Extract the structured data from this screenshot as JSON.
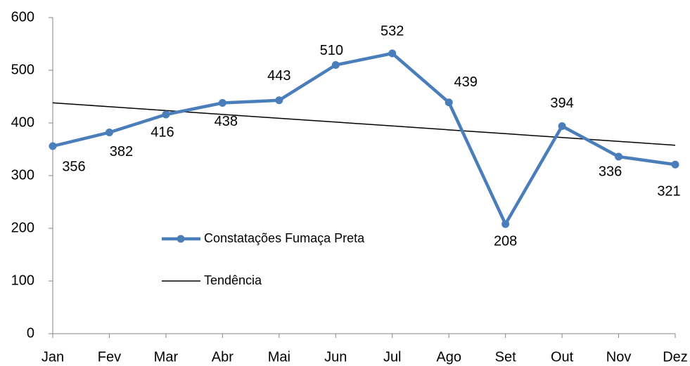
{
  "chart_data": {
    "type": "line",
    "categories": [
      "Jan",
      "Fev",
      "Mar",
      "Abr",
      "Mai",
      "Jun",
      "Jul",
      "Ago",
      "Set",
      "Out",
      "Nov",
      "Dez"
    ],
    "series": [
      {
        "name": "Constatações Fumaça Preta",
        "color": "#4a7ebb",
        "values": [
          356,
          382,
          416,
          438,
          443,
          510,
          532,
          439,
          208,
          394,
          336,
          321
        ]
      },
      {
        "name": "Tendência",
        "color": "#000000",
        "values": [
          438.2,
          430.8,
          423.5,
          416.2,
          408.9,
          401.6,
          394.3,
          386.9,
          379.6,
          372.3,
          365.0,
          357.7
        ]
      }
    ],
    "ylim": [
      0,
      600
    ],
    "yticks": [
      0,
      100,
      200,
      300,
      400,
      500,
      600
    ]
  }
}
